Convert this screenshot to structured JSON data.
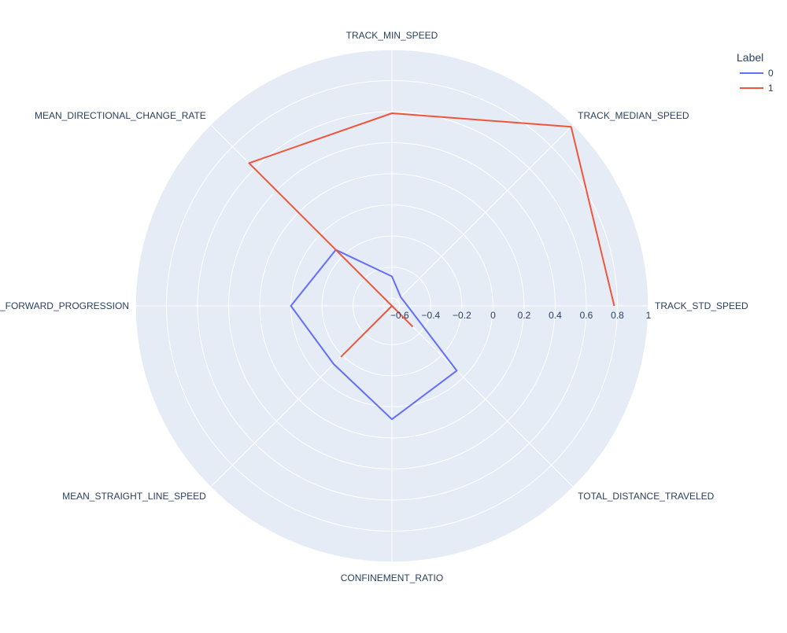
{
  "chart_data": {
    "type": "radar",
    "title": "",
    "axes": [
      "TRACK_STD_SPEED",
      "TRACK_MEDIAN_SPEED",
      "TRACK_MIN_SPEED",
      "MEAN_DIRECTIONAL_CHANGE_RATE",
      "MEAN_FORWARD_PROGRESSION",
      "MEAN_STRAIGHT_LINE_SPEED",
      "CONFINEMENT_RATIO",
      "TOTAL_DISTANCE_TRAVELED"
    ],
    "radial_range": [
      -0.65,
      1.0
    ],
    "radial_ticks": [
      -0.6,
      -0.4,
      -0.2,
      0,
      0.2,
      0.4,
      0.6,
      0.8,
      1
    ],
    "radial_tick_labels": [
      "−0.6",
      "−0.4",
      "−0.2",
      "0",
      "0.2",
      "0.4",
      "0.6",
      "0.8",
      "1"
    ],
    "legend": {
      "title": "Label",
      "placement": "top-right"
    },
    "series": [
      {
        "name": "0",
        "color": "#636efa",
        "closed": true,
        "values": [
          -0.55,
          -0.57,
          -0.46,
          -0.14,
          0.0,
          -0.12,
          0.08,
          -0.06
        ]
      },
      {
        "name": "1",
        "color": "#ef553b",
        "closed": false,
        "values": [
          0.78,
          0.98,
          0.59,
          0.65,
          -0.65,
          -0.19,
          -0.65,
          -0.46
        ]
      }
    ]
  }
}
